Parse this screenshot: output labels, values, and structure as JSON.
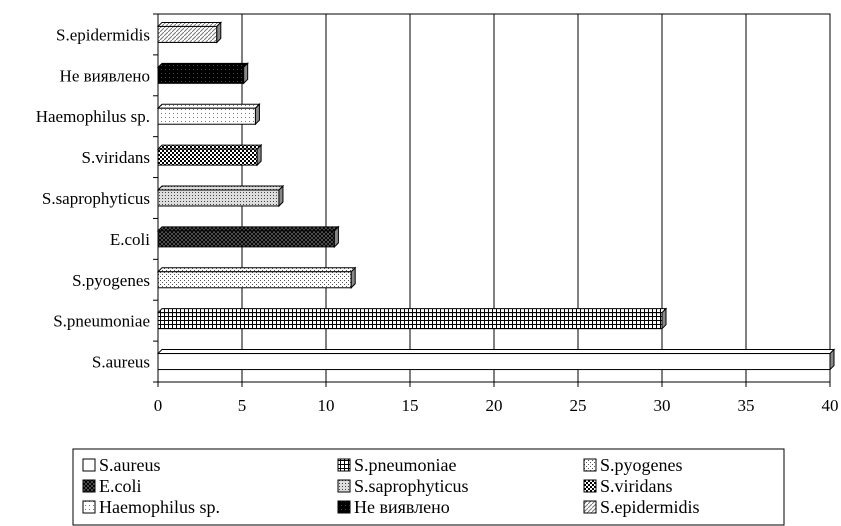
{
  "chart_data": {
    "type": "bar",
    "orientation": "horizontal",
    "style": "3d",
    "categories": [
      "S.aureus",
      "S.pneumoniae",
      "S.pyogenes",
      "E.coli",
      "S.saprophyticus",
      "S.viridans",
      "Haemophilus sp.",
      "Не виявлено",
      "S.epidermidis"
    ],
    "values": [
      40,
      30,
      11.5,
      10.5,
      7.2,
      5.9,
      5.8,
      5.1,
      3.5
    ],
    "series_names": [
      "S.aureus",
      "S.pneumoniae",
      "S.pyogenes",
      "E.coli",
      "S.saprophyticus",
      "S.viridans",
      "Haemophilus sp.",
      "Не виявлено",
      "S.epidermidis"
    ],
    "patterns": [
      "plain",
      "grid",
      "dots-light",
      "crosshatch-dark",
      "dots-medium",
      "checker",
      "dots-sparse",
      "solid-dark",
      "diagonal-light"
    ],
    "xlim": [
      0,
      40
    ],
    "xticks": [
      "0",
      "5",
      "10",
      "15",
      "20",
      "25",
      "30",
      "35",
      "40"
    ],
    "grid": "vertical",
    "legend_position": "bottom",
    "title": "",
    "xlabel": "",
    "ylabel": ""
  }
}
